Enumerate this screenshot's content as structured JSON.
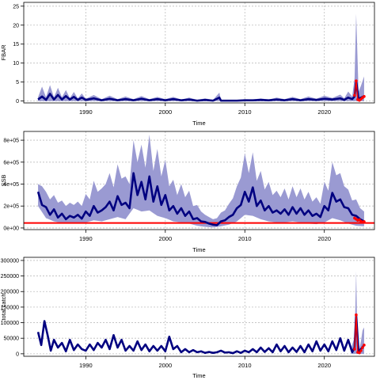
{
  "chart_data": [
    {
      "type": "area",
      "xlabel": "Time",
      "ylabel": "FBAR",
      "xlim": [
        1982.2,
        2026.3
      ],
      "ylim": [
        -0.5,
        26
      ],
      "xticks": [
        1990,
        2000,
        2010,
        2020
      ],
      "yticks": [
        0,
        5,
        10,
        15,
        20,
        25
      ],
      "ytick_labels": [
        "0",
        "5",
        "10",
        "15",
        "20",
        "25"
      ],
      "grid": true,
      "series": [
        {
          "role": "median",
          "x": [
            1984.0,
            1984.5,
            1985.0,
            1985.5,
            1986.0,
            1986.5,
            1987.0,
            1987.5,
            1988.0,
            1988.5,
            1989.0,
            1989.5,
            1990.0,
            1991.0,
            1992.0,
            1993.0,
            1994.0,
            1995.0,
            1996.0,
            1997.0,
            1998.0,
            1999.0,
            2000.0,
            2001.0,
            2002.0,
            2003.0,
            2004.0,
            2005.0,
            2006.0,
            2006.8,
            2007.0,
            2008.0,
            2009.0,
            2010.0,
            2011.0,
            2012.0,
            2013.0,
            2014.0,
            2015.0,
            2016.0,
            2017.0,
            2018.0,
            2019.0,
            2020.0,
            2021.0,
            2022.0,
            2022.5,
            2023.0,
            2023.5,
            2023.8,
            2024.0,
            2024.3,
            2024.6,
            2025.0
          ],
          "y": [
            0.4,
            1.2,
            0.3,
            1.9,
            0.4,
            1.6,
            0.4,
            1.3,
            0.4,
            1.1,
            0.3,
            0.9,
            0.3,
            0.7,
            0.2,
            0.6,
            0.2,
            0.5,
            0.2,
            0.6,
            0.2,
            0.5,
            0.2,
            0.5,
            0.2,
            0.4,
            0.1,
            0.3,
            0.1,
            0.9,
            0.1,
            0.1,
            0.1,
            0.2,
            0.2,
            0.3,
            0.2,
            0.4,
            0.2,
            0.5,
            0.2,
            0.5,
            0.3,
            0.6,
            0.4,
            0.7,
            0.3,
            0.9,
            0.5,
            1.2,
            5.3,
            0.5,
            0.9,
            1.3
          ]
        },
        {
          "role": "upper",
          "x": [
            1984.0,
            1984.5,
            1985.0,
            1985.5,
            1986.0,
            1986.5,
            1987.0,
            1987.5,
            1988.0,
            1988.5,
            1989.0,
            1989.5,
            1990.0,
            1991.0,
            1992.0,
            1993.0,
            1994.0,
            1995.0,
            1996.0,
            1997.0,
            1998.0,
            1999.0,
            2000.0,
            2001.0,
            2002.0,
            2003.0,
            2004.0,
            2005.0,
            2006.0,
            2006.8,
            2007.0,
            2008.0,
            2009.0,
            2010.0,
            2011.0,
            2012.0,
            2013.0,
            2014.0,
            2015.0,
            2016.0,
            2017.0,
            2018.0,
            2019.0,
            2020.0,
            2021.0,
            2022.0,
            2022.5,
            2023.0,
            2023.5,
            2023.8,
            2024.0,
            2024.3,
            2024.6,
            2025.0
          ],
          "y": [
            1.0,
            3.8,
            1.0,
            4.2,
            1.0,
            3.5,
            1.0,
            2.9,
            0.8,
            2.4,
            0.7,
            2.0,
            0.6,
            1.6,
            0.5,
            1.4,
            0.5,
            1.2,
            0.5,
            1.3,
            0.5,
            1.1,
            0.5,
            1.1,
            0.4,
            0.9,
            0.3,
            0.7,
            0.3,
            2.2,
            0.3,
            0.3,
            0.3,
            0.5,
            0.4,
            0.7,
            0.4,
            0.9,
            0.5,
            1.1,
            0.5,
            1.2,
            0.6,
            1.4,
            0.8,
            1.7,
            0.7,
            2.5,
            1.2,
            6.0,
            23.0,
            2.5,
            4.0,
            6.5
          ]
        },
        {
          "role": "lower",
          "x": [
            1984.0,
            2025.0
          ],
          "y": [
            0.0,
            0.0
          ]
        }
      ],
      "highlight_points": {
        "x": [
          2023.8,
          2024.0,
          2024.2,
          2024.4,
          2024.6,
          2024.8,
          2025.0
        ],
        "y": [
          1.5,
          5.3,
          0.4,
          0.2,
          0.5,
          0.9,
          1.2
        ]
      }
    },
    {
      "type": "area",
      "xlabel": "Time",
      "ylabel": "SSB",
      "xlim": [
        1982.2,
        2026.3
      ],
      "ylim": [
        -15000,
        880000
      ],
      "xticks": [
        1990,
        2000,
        2010,
        2020
      ],
      "yticks": [
        0,
        200000,
        400000,
        600000,
        800000
      ],
      "ytick_labels": [
        "0e+00",
        "2e+05",
        "4e+05",
        "6e+05",
        "8e+05"
      ],
      "grid": true,
      "reference_line": 45000,
      "series": [
        {
          "role": "median",
          "x": [
            1984.0,
            1984.5,
            1985.0,
            1985.5,
            1986.0,
            1986.5,
            1987.0,
            1987.5,
            1988.0,
            1988.5,
            1989.0,
            1989.5,
            1990.0,
            1990.5,
            1991.0,
            1991.5,
            1992.0,
            1992.5,
            1993.0,
            1993.5,
            1994.0,
            1994.5,
            1995.0,
            1995.5,
            1996.0,
            1996.5,
            1997.0,
            1997.5,
            1998.0,
            1998.5,
            1999.0,
            1999.5,
            2000.0,
            2000.5,
            2001.0,
            2001.5,
            2002.0,
            2002.5,
            2003.0,
            2003.5,
            2004.0,
            2004.5,
            2005.0,
            2005.5,
            2006.0,
            2006.5,
            2007.0,
            2007.5,
            2008.0,
            2008.5,
            2009.0,
            2009.5,
            2010.0,
            2010.5,
            2011.0,
            2011.5,
            2012.0,
            2012.5,
            2013.0,
            2013.5,
            2014.0,
            2014.5,
            2015.0,
            2015.5,
            2016.0,
            2016.5,
            2017.0,
            2017.5,
            2018.0,
            2018.5,
            2019.0,
            2019.5,
            2020.0,
            2020.5,
            2021.0,
            2021.5,
            2022.0,
            2022.5,
            2023.0,
            2023.5,
            2024.0,
            2024.5,
            2025.0
          ],
          "y": [
            330000,
            210000,
            190000,
            120000,
            170000,
            95000,
            130000,
            80000,
            110000,
            95000,
            120000,
            85000,
            150000,
            110000,
            200000,
            140000,
            160000,
            190000,
            240000,
            160000,
            290000,
            210000,
            230000,
            180000,
            500000,
            300000,
            420000,
            260000,
            470000,
            240000,
            380000,
            210000,
            300000,
            160000,
            200000,
            130000,
            180000,
            110000,
            150000,
            80000,
            90000,
            60000,
            55000,
            40000,
            30000,
            25000,
            60000,
            70000,
            100000,
            120000,
            180000,
            210000,
            330000,
            240000,
            370000,
            200000,
            250000,
            160000,
            200000,
            140000,
            160000,
            130000,
            170000,
            120000,
            190000,
            130000,
            180000,
            120000,
            160000,
            110000,
            130000,
            100000,
            200000,
            160000,
            320000,
            240000,
            260000,
            190000,
            180000,
            120000,
            110000,
            80000,
            60000
          ]
        },
        {
          "role": "upper",
          "x": [
            1984.0,
            1984.5,
            1985.0,
            1985.5,
            1986.0,
            1986.5,
            1987.0,
            1987.5,
            1988.0,
            1988.5,
            1989.0,
            1989.5,
            1990.0,
            1990.5,
            1991.0,
            1991.5,
            1992.0,
            1992.5,
            1993.0,
            1993.5,
            1994.0,
            1994.5,
            1995.0,
            1995.5,
            1996.0,
            1996.5,
            1997.0,
            1997.5,
            1998.0,
            1998.5,
            1999.0,
            1999.5,
            2000.0,
            2000.5,
            2001.0,
            2001.5,
            2002.0,
            2002.5,
            2003.0,
            2003.5,
            2004.0,
            2004.5,
            2005.0,
            2005.5,
            2006.0,
            2006.5,
            2007.0,
            2007.5,
            2008.0,
            2008.5,
            2009.0,
            2009.5,
            2010.0,
            2010.5,
            2011.0,
            2011.5,
            2012.0,
            2012.5,
            2013.0,
            2013.5,
            2014.0,
            2014.5,
            2015.0,
            2015.5,
            2016.0,
            2016.5,
            2017.0,
            2017.5,
            2018.0,
            2018.5,
            2019.0,
            2019.5,
            2020.0,
            2020.5,
            2021.0,
            2021.5,
            2022.0,
            2022.5,
            2023.0,
            2023.5,
            2024.0,
            2024.5,
            2025.0
          ],
          "y": [
            400000,
            380000,
            330000,
            260000,
            300000,
            230000,
            250000,
            200000,
            230000,
            210000,
            240000,
            200000,
            310000,
            260000,
            430000,
            330000,
            360000,
            400000,
            500000,
            370000,
            580000,
            450000,
            470000,
            400000,
            800000,
            600000,
            760000,
            550000,
            850000,
            520000,
            720000,
            470000,
            620000,
            380000,
            440000,
            300000,
            400000,
            280000,
            340000,
            200000,
            210000,
            150000,
            120000,
            100000,
            80000,
            90000,
            140000,
            160000,
            220000,
            270000,
            380000,
            460000,
            680000,
            500000,
            690000,
            430000,
            520000,
            350000,
            420000,
            300000,
            340000,
            280000,
            360000,
            260000,
            380000,
            280000,
            360000,
            260000,
            330000,
            240000,
            280000,
            220000,
            420000,
            340000,
            600000,
            480000,
            500000,
            380000,
            350000,
            250000,
            260000,
            180000,
            150000
          ]
        },
        {
          "role": "lower",
          "x": [
            1984.0,
            1985.0,
            1986.0,
            1987.0,
            1988.0,
            1989.0,
            1990.0,
            1991.0,
            1992.0,
            1993.0,
            1994.0,
            1995.0,
            1996.0,
            1997.0,
            1998.0,
            1999.0,
            2000.0,
            2001.0,
            2002.0,
            2003.0,
            2004.0,
            2005.0,
            2006.0,
            2007.0,
            2008.0,
            2009.0,
            2010.0,
            2011.0,
            2012.0,
            2013.0,
            2014.0,
            2015.0,
            2016.0,
            2017.0,
            2018.0,
            2019.0,
            2020.0,
            2021.0,
            2022.0,
            2023.0,
            2024.0,
            2025.0
          ],
          "y": [
            200000,
            90000,
            60000,
            45000,
            45000,
            40000,
            50000,
            70000,
            60000,
            80000,
            100000,
            80000,
            180000,
            150000,
            160000,
            110000,
            90000,
            60000,
            50000,
            40000,
            20000,
            10000,
            5000,
            15000,
            30000,
            60000,
            120000,
            110000,
            80000,
            60000,
            50000,
            50000,
            60000,
            50000,
            40000,
            35000,
            50000,
            90000,
            70000,
            40000,
            20000,
            15000
          ]
        }
      ],
      "highlight_points": {
        "x": [
          2023.8,
          2024.0,
          2024.2,
          2024.4,
          2024.6,
          2024.8,
          2025.0
        ],
        "y": [
          90000,
          80000,
          70000,
          75000,
          60000,
          55000,
          58000
        ]
      }
    },
    {
      "type": "line",
      "xlabel": "Time",
      "ylabel": "total catch",
      "xlim": [
        1982.2,
        2026.3
      ],
      "ylim": [
        -8000,
        310000
      ],
      "xticks": [
        1990,
        2000,
        2010,
        2020
      ],
      "yticks": [
        0,
        50000,
        100000,
        150000,
        200000,
        250000,
        300000
      ],
      "ytick_labels": [
        "0",
        "50000",
        "100000",
        "150000",
        "200000",
        "250000",
        "300000"
      ],
      "grid": true,
      "series": [
        {
          "role": "median",
          "x": [
            1984.0,
            1984.4,
            1984.8,
            1985.2,
            1985.6,
            1986.0,
            1986.5,
            1987.0,
            1987.5,
            1988.0,
            1988.5,
            1989.0,
            1989.5,
            1990.0,
            1990.5,
            1991.0,
            1991.5,
            1992.0,
            1992.5,
            1993.0,
            1993.5,
            1994.0,
            1994.5,
            1995.0,
            1995.5,
            1996.0,
            1996.5,
            1997.0,
            1997.5,
            1998.0,
            1998.5,
            1999.0,
            1999.5,
            2000.0,
            2000.5,
            2001.0,
            2001.5,
            2002.0,
            2002.5,
            2003.0,
            2003.5,
            2004.0,
            2004.5,
            2005.0,
            2005.5,
            2006.0,
            2006.5,
            2007.0,
            2007.5,
            2008.0,
            2008.5,
            2009.0,
            2009.5,
            2010.0,
            2010.5,
            2011.0,
            2011.5,
            2012.0,
            2012.5,
            2013.0,
            2013.5,
            2014.0,
            2014.5,
            2015.0,
            2015.5,
            2016.0,
            2016.5,
            2017.0,
            2017.5,
            2018.0,
            2018.5,
            2019.0,
            2019.5,
            2020.0,
            2020.5,
            2021.0,
            2021.5,
            2022.0,
            2022.5,
            2023.0,
            2023.5,
            2023.8,
            2024.0,
            2024.3,
            2024.6,
            2025.0
          ],
          "y": [
            70000,
            28000,
            105000,
            60000,
            10000,
            45000,
            20000,
            35000,
            8000,
            45000,
            12000,
            30000,
            15000,
            10000,
            30000,
            12000,
            35000,
            20000,
            45000,
            15000,
            60000,
            20000,
            45000,
            10000,
            25000,
            10000,
            40000,
            12000,
            30000,
            8000,
            25000,
            10000,
            25000,
            8000,
            55000,
            15000,
            25000,
            5000,
            15000,
            5000,
            12000,
            5000,
            8000,
            3000,
            6000,
            3000,
            5000,
            10000,
            4000,
            5000,
            2000,
            8000,
            3000,
            10000,
            5000,
            15000,
            5000,
            20000,
            6000,
            18000,
            5000,
            30000,
            8000,
            25000,
            5000,
            20000,
            6000,
            25000,
            5000,
            30000,
            8000,
            40000,
            10000,
            30000,
            8000,
            40000,
            12000,
            50000,
            10000,
            45000,
            5000,
            20000,
            125000,
            5000,
            15000,
            28000
          ]
        },
        {
          "role": "upper",
          "x": [
            2023.4,
            2023.7,
            2023.8,
            2023.9,
            2024.0,
            2024.1,
            2024.2,
            2024.4,
            2024.6,
            2024.8,
            2025.0
          ],
          "y": [
            20000,
            45000,
            60000,
            150000,
            265000,
            120000,
            30000,
            15000,
            40000,
            75000,
            85000
          ]
        },
        {
          "role": "lower",
          "x": [
            2023.4,
            2025.0
          ],
          "y": [
            0,
            0
          ]
        }
      ],
      "highlight_points": {
        "x": [
          2023.8,
          2024.0,
          2024.2,
          2024.4,
          2024.6,
          2024.8,
          2025.0
        ],
        "y": [
          15000,
          125000,
          5000,
          3000,
          10000,
          20000,
          28000
        ]
      }
    }
  ],
  "colors": {
    "band": "#9a9ad2",
    "line": "#000080",
    "highlight": "#ff0000",
    "reference": "#ff0000",
    "grid": "#bdbdbd"
  }
}
